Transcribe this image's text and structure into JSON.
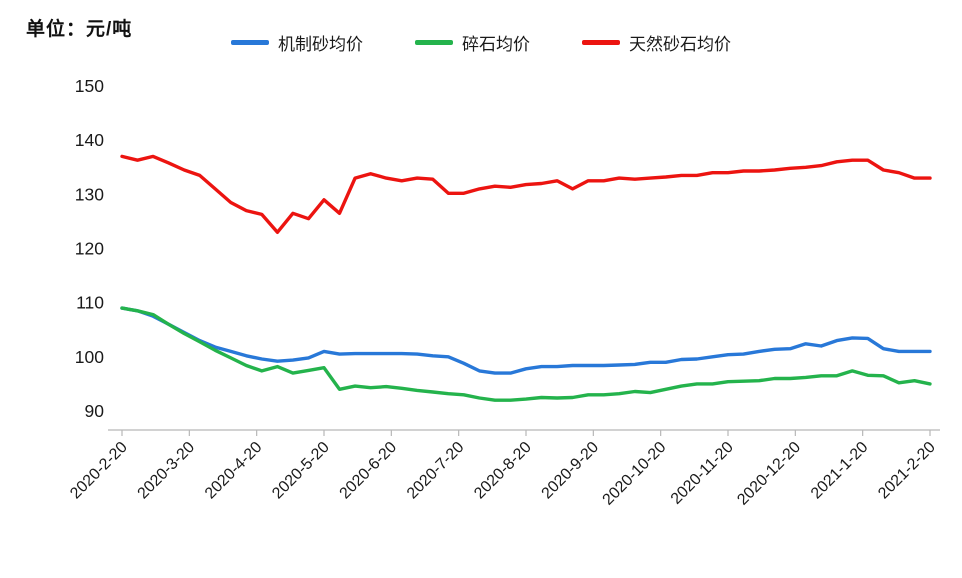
{
  "header": {
    "unit_label": "单位：元/吨"
  },
  "chart_data": {
    "type": "line",
    "title": "",
    "unit_label": "单位：元/吨",
    "grid": false,
    "legend_position": "top",
    "ylim": [
      90,
      150
    ],
    "y_ticks": [
      90,
      100,
      110,
      120,
      130,
      140,
      150
    ],
    "x_tick_labels": [
      "2020-2-20",
      "2020-3-20",
      "2020-4-20",
      "2020-5-20",
      "2020-6-20",
      "2020-7-20",
      "2020-8-20",
      "2020-9-20",
      "2020-10-20",
      "2020-11-20",
      "2020-12-20",
      "2021-1-20",
      "2021-2-20"
    ],
    "x_resolution": "weekly",
    "series": [
      {
        "name": "机制砂均价",
        "color": "#2878d8",
        "values": [
          109,
          108.5,
          107.5,
          106,
          104.5,
          103,
          101.8,
          101,
          100.2,
          99.6,
          99.2,
          99.4,
          99.8,
          101,
          100.5,
          100.6,
          100.6,
          100.6,
          100.6,
          100.5,
          100.2,
          100,
          98.8,
          97.4,
          97,
          97,
          97.8,
          98.2,
          98.2,
          98.4,
          98.4,
          98.4,
          98.5,
          98.6,
          99,
          99,
          99.5,
          99.6,
          100,
          100.4,
          100.5,
          101,
          101.4,
          101.5,
          102.4,
          102,
          103,
          103.5,
          103.4,
          101.5,
          101,
          101,
          101
        ]
      },
      {
        "name": "碎石均价",
        "color": "#24b34c",
        "values": [
          109,
          108.5,
          107.8,
          106,
          104.3,
          102.8,
          101.2,
          99.8,
          98.4,
          97.4,
          98.2,
          97,
          97.5,
          98,
          94,
          94.6,
          94.3,
          94.5,
          94.2,
          93.8,
          93.5,
          93.2,
          93,
          92.4,
          92,
          92,
          92.2,
          92.5,
          92.4,
          92.5,
          93,
          93,
          93.2,
          93.6,
          93.4,
          94,
          94.6,
          95,
          95,
          95.4,
          95.5,
          95.6,
          96,
          96,
          96.2,
          96.5,
          96.5,
          97.4,
          96.6,
          96.5,
          95.2,
          95.6,
          95
        ]
      },
      {
        "name": "天然砂石均价",
        "color": "#ec1410",
        "values": [
          137,
          136.3,
          137,
          135.8,
          134.5,
          133.5,
          131,
          128.5,
          127,
          126.3,
          123,
          126.5,
          125.5,
          129,
          126.5,
          133,
          133.8,
          133,
          132.5,
          133,
          132.8,
          130.2,
          130.2,
          131,
          131.5,
          131.3,
          131.8,
          132,
          132.5,
          131,
          132.5,
          132.5,
          133,
          132.8,
          133,
          133.2,
          133.5,
          133.5,
          134,
          134,
          134.3,
          134.3,
          134.5,
          134.8,
          135,
          135.3,
          136,
          136.3,
          136.3,
          134.5,
          134,
          133,
          133
        ]
      }
    ]
  }
}
